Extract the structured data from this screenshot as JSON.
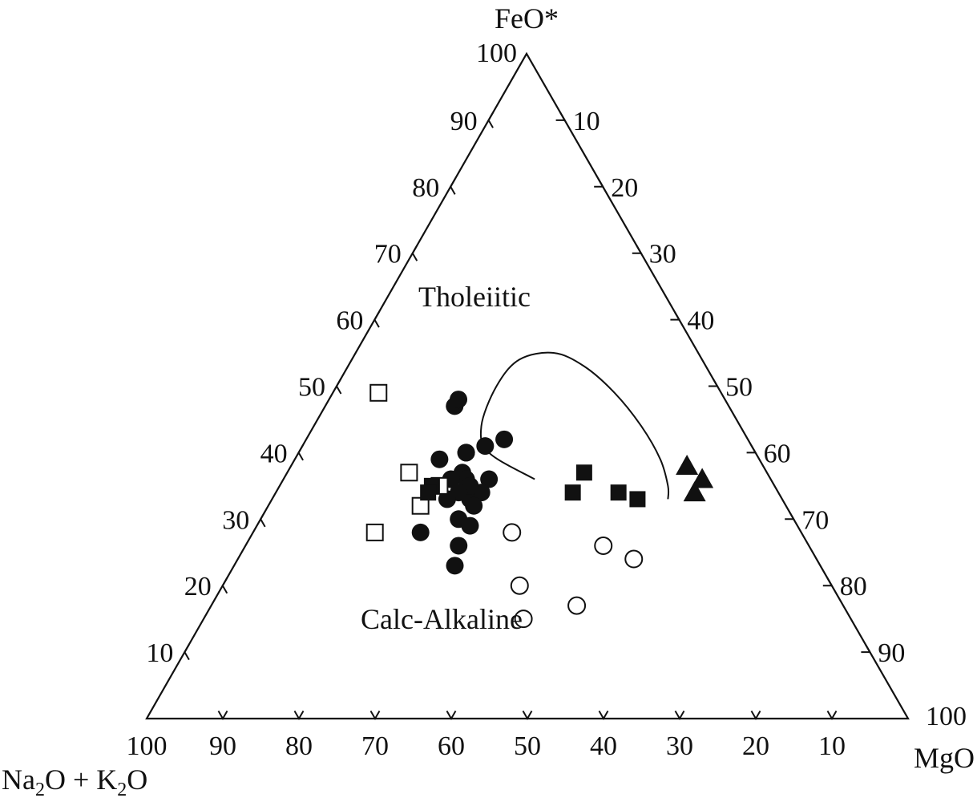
{
  "chart_data": {
    "type": "ternary",
    "axes": {
      "top": "FeO*",
      "left_main": "Na",
      "left_sub1": "2",
      "left_mid": "O + K",
      "left_sub2": "2",
      "left_end": "O",
      "right": "MgO"
    },
    "ticks": {
      "left": [
        "10",
        "20",
        "30",
        "40",
        "50",
        "60",
        "70",
        "80",
        "90",
        "100"
      ],
      "right": [
        "10",
        "20",
        "30",
        "40",
        "50",
        "60",
        "70",
        "80",
        "90",
        "100"
      ],
      "bottom": [
        "100",
        "90",
        "80",
        "70",
        "60",
        "50",
        "40",
        "30",
        "20",
        "10"
      ]
    },
    "field_labels": {
      "upper": "Tholeiitic",
      "lower": "Calc-Alkaline"
    },
    "boundary": [
      [
        31,
        36,
        33
      ],
      [
        35,
        40,
        25
      ],
      [
        34,
        44,
        22
      ],
      [
        29,
        50,
        21
      ],
      [
        24,
        54,
        22
      ],
      [
        19,
        55,
        26
      ],
      [
        16,
        53,
        31
      ],
      [
        14,
        49,
        37
      ],
      [
        13,
        44,
        43
      ],
      [
        13,
        39,
        48
      ],
      [
        14,
        35,
        51
      ],
      [
        15,
        33,
        52
      ]
    ],
    "series": [
      {
        "marker": "filled-circle",
        "points": [
          [
            36,
            47,
            17
          ],
          [
            35,
            48,
            17
          ],
          [
            35,
            41,
            24
          ],
          [
            32,
            42,
            26
          ],
          [
            38,
            40,
            22
          ],
          [
            37,
            36,
            27
          ],
          [
            38,
            40,
            22
          ],
          [
            41,
            33,
            26
          ],
          [
            42,
            39,
            19
          ],
          [
            40,
            34,
            26
          ],
          [
            40,
            37,
            23
          ],
          [
            40,
            36,
            24
          ],
          [
            39,
            34,
            27
          ],
          [
            41,
            34,
            25
          ],
          [
            40,
            35,
            25
          ],
          [
            42,
            36,
            22
          ],
          [
            42,
            34,
            24
          ],
          [
            44,
            33,
            23
          ],
          [
            50,
            28,
            22
          ],
          [
            44,
            30,
            26
          ],
          [
            43,
            29,
            28
          ],
          [
            46,
            26,
            28
          ],
          [
            48,
            23,
            29
          ],
          [
            41,
            32,
            27
          ]
        ]
      },
      {
        "marker": "open-square",
        "points": [
          [
            45,
            49,
            6
          ],
          [
            56,
            28,
            16
          ],
          [
            48,
            32,
            20
          ],
          [
            47,
            37,
            16
          ],
          [
            44,
            35,
            21
          ]
        ]
      },
      {
        "marker": "filled-square",
        "points": [
          [
            24,
            37,
            39
          ],
          [
            21,
            34,
            45
          ],
          [
            27,
            34,
            39
          ],
          [
            19,
            33,
            48
          ],
          [
            45,
            35,
            20
          ],
          [
            46,
            34,
            20
          ]
        ]
      },
      {
        "marker": "filled-triangle",
        "points": [
          [
            9,
            36,
            55
          ],
          [
            11,
            34,
            55
          ],
          [
            10,
            38,
            52
          ]
        ]
      },
      {
        "marker": "open-circle",
        "points": [
          [
            38,
            28,
            34
          ],
          [
            27,
            26,
            47
          ],
          [
            24,
            24,
            52
          ],
          [
            41,
            20,
            39
          ],
          [
            35,
            17,
            48
          ],
          [
            43,
            15,
            42
          ]
        ]
      }
    ]
  }
}
